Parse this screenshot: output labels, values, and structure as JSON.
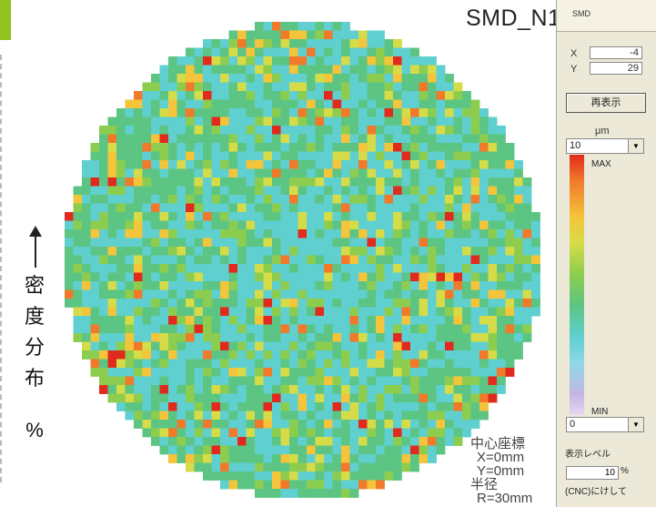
{
  "title": "SMD_N1",
  "density_axis": {
    "chars": [
      "密",
      "度",
      "分",
      "布"
    ],
    "unit": "%"
  },
  "center_info": {
    "heading": "中心座標",
    "x": "X=0mm",
    "y": "Y=0mm",
    "radius_heading": "半径",
    "radius": "R=30mm"
  },
  "panel": {
    "tab_title": "SMD",
    "x_label": "X",
    "x_value": "-4",
    "y_label": "Y",
    "y_value": "29",
    "redisplay_button": "再表示",
    "unit": "μm",
    "max_select": "10",
    "max_label": "MAX",
    "min_label": "MIN",
    "min_select": "0",
    "level_label": "表示レベル",
    "level_value": "10",
    "level_unit": "%",
    "note": "(CNC)にけして"
  },
  "colors": {
    "accent": "#8fc31f",
    "scale": [
      "#5fcfcf",
      "#5cc584",
      "#8ccd4f",
      "#d6dc48",
      "#f4c43a",
      "#f07a2a",
      "#e02a1e"
    ],
    "min_color": "#c3b5e2"
  },
  "icons": [
    "up-arrow-icon",
    "dropdown-arrow-icon"
  ]
}
